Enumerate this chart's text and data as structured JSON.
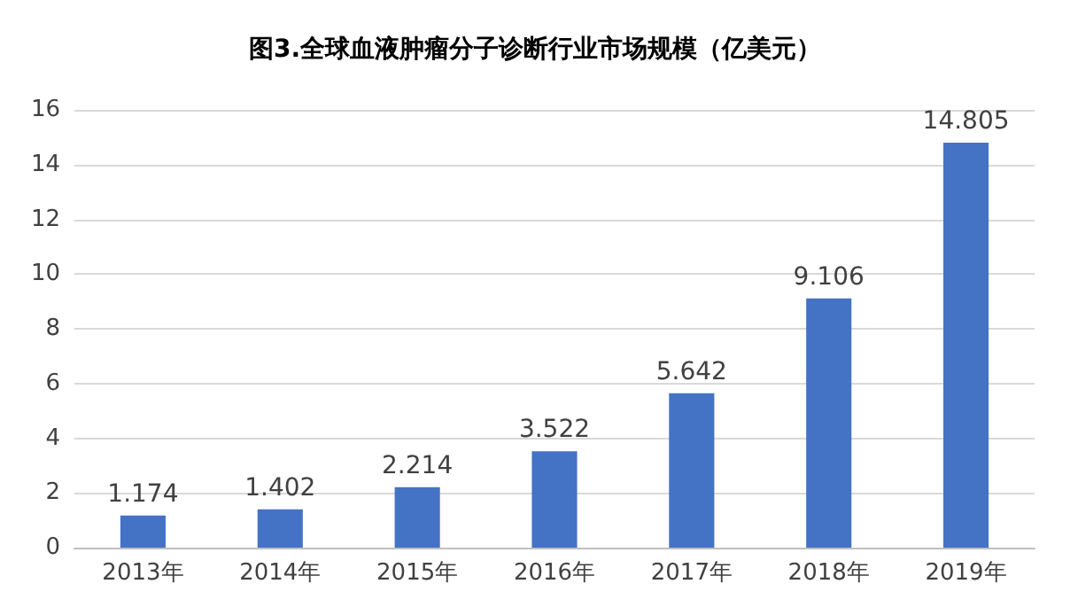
{
  "chart_data": {
    "type": "bar",
    "title": "图3.全球血液肿瘤分子诊断行业市场规模（亿美元）",
    "categories": [
      "2013年",
      "2014年",
      "2015年",
      "2016年",
      "2017年",
      "2018年",
      "2019年"
    ],
    "values": [
      1.174,
      1.402,
      2.214,
      3.522,
      5.642,
      9.106,
      14.805
    ],
    "color": "#4472c4",
    "ylim": [
      0,
      16
    ],
    "yticks": [
      0,
      2,
      4,
      6,
      8,
      10,
      12,
      14,
      16
    ],
    "grid": "y",
    "data_labels": true
  }
}
